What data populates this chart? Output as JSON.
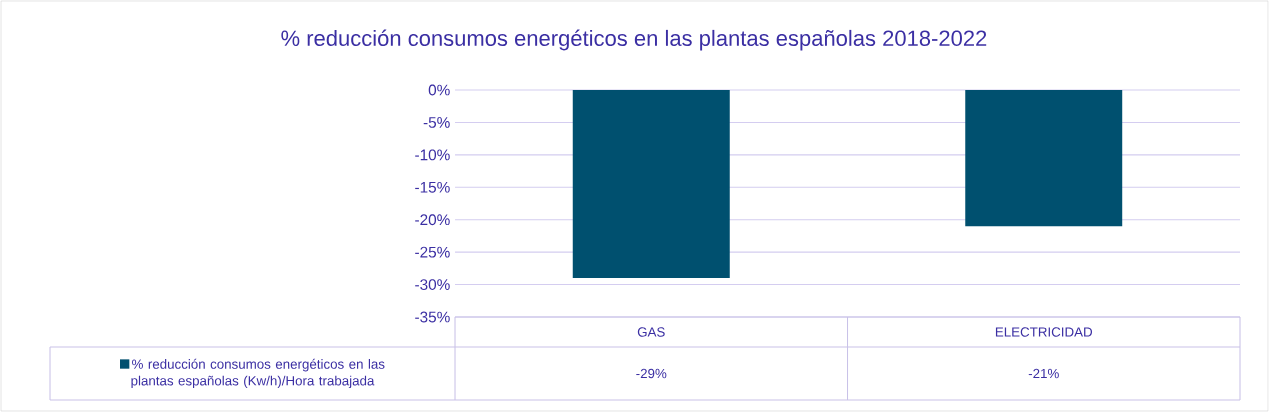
{
  "chart_data": {
    "type": "bar",
    "title": "% reducción consumos energéticos en las plantas españolas 2018-2022",
    "categories": [
      "GAS",
      "ELECTRICIDAD"
    ],
    "series": [
      {
        "name": "% reducción consumos energéticos en las plantas españolas (Kw/h)/Hora trabajada",
        "color": "#00506f",
        "values": [
          -29,
          -21
        ],
        "value_labels": [
          "-29%",
          "-21%"
        ]
      }
    ],
    "ylim": [
      -35,
      0
    ],
    "yticks": [
      {
        "value": 0,
        "label": "0%"
      },
      {
        "value": -5,
        "label": "-5%"
      },
      {
        "value": -10,
        "label": "-10%"
      },
      {
        "value": -15,
        "label": "-15%"
      },
      {
        "value": -20,
        "label": "-20%"
      },
      {
        "value": -25,
        "label": "-25%"
      },
      {
        "value": -30,
        "label": "-30%"
      },
      {
        "value": -35,
        "label": "-35%"
      }
    ],
    "grid": "y",
    "legend": "bottom"
  }
}
